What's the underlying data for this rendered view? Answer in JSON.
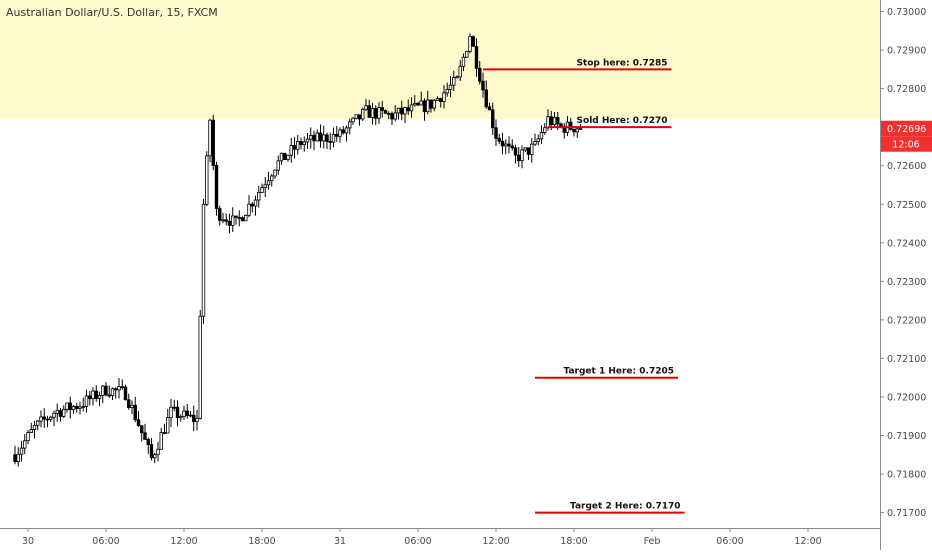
{
  "chart_data": {
    "type": "candlestick",
    "title": "Australian Dollar/U.S. Dollar, 15, FXCM",
    "xlabel": "",
    "ylabel": "",
    "ylim": [
      0.7166,
      0.7303
    ],
    "x_ticks": [
      "30",
      "06:00",
      "12:00",
      "18:00",
      "31",
      "06:00",
      "12:00",
      "18:00",
      "Feb",
      "06:00",
      "12:00"
    ],
    "y_ticks": [
      "0.73000",
      "0.72900",
      "0.72800",
      "0.72600",
      "0.72500",
      "0.72400",
      "0.72300",
      "0.72200",
      "0.72100",
      "0.72000",
      "0.71900",
      "0.71800",
      "0.71700"
    ],
    "grid": false,
    "current_price": "0.72696",
    "countdown": "12:06",
    "highlight_zone": {
      "from": 0.7272,
      "to": 0.7303,
      "color": "#fffacd"
    },
    "price_path": [
      {
        "t": "29 23:00",
        "p": 0.7185
      },
      {
        "t": "30 00:30",
        "p": 0.7192
      },
      {
        "t": "30 02:00",
        "p": 0.7196
      },
      {
        "t": "30 04:00",
        "p": 0.7198
      },
      {
        "t": "30 06:00",
        "p": 0.7202
      },
      {
        "t": "30 07:30",
        "p": 0.7201
      },
      {
        "t": "30 08:30",
        "p": 0.7193
      },
      {
        "t": "30 09:30",
        "p": 0.7184
      },
      {
        "t": "30 11:00",
        "p": 0.7196
      },
      {
        "t": "30 13:00",
        "p": 0.7194
      },
      {
        "t": "30 13:30",
        "p": 0.725
      },
      {
        "t": "30 14:00",
        "p": 0.7272
      },
      {
        "t": "30 14:30",
        "p": 0.7248
      },
      {
        "t": "30 16:00",
        "p": 0.7245
      },
      {
        "t": "30 17:30",
        "p": 0.7252
      },
      {
        "t": "30 19:00",
        "p": 0.726
      },
      {
        "t": "30 21:00",
        "p": 0.7266
      },
      {
        "t": "31 00:00",
        "p": 0.7268
      },
      {
        "t": "31 02:00",
        "p": 0.7274
      },
      {
        "t": "31 04:00",
        "p": 0.7273
      },
      {
        "t": "31 07:00",
        "p": 0.7276
      },
      {
        "t": "31 09:00",
        "p": 0.7282
      },
      {
        "t": "31 10:00",
        "p": 0.7294
      },
      {
        "t": "31 11:00",
        "p": 0.728
      },
      {
        "t": "31 12:00",
        "p": 0.7268
      },
      {
        "t": "31 13:30",
        "p": 0.7262
      },
      {
        "t": "31 15:00",
        "p": 0.7265
      },
      {
        "t": "31 16:00",
        "p": 0.7272
      },
      {
        "t": "31 17:00",
        "p": 0.727
      },
      {
        "t": "31 18:30",
        "p": 0.727
      }
    ],
    "annotations": [
      {
        "label": "Stop here: 0.7285",
        "price": 0.7285,
        "from_t": "31 11:00",
        "to_t": "Feb 01:30"
      },
      {
        "label": "Sold Here: 0.7270",
        "price": 0.727,
        "from_t": "31 16:00",
        "to_t": "Feb 01:30"
      },
      {
        "label": "Target 1 Here: 0.7205",
        "price": 0.7205,
        "from_t": "31 15:00",
        "to_t": "Feb 02:00"
      },
      {
        "label": "Target 2 Here: 0.7170",
        "price": 0.717,
        "from_t": "31 15:00",
        "to_t": "Feb 02:30"
      }
    ],
    "colors": {
      "candle": "#000000",
      "annotation": "#e00000",
      "badge": "#f23030"
    }
  }
}
